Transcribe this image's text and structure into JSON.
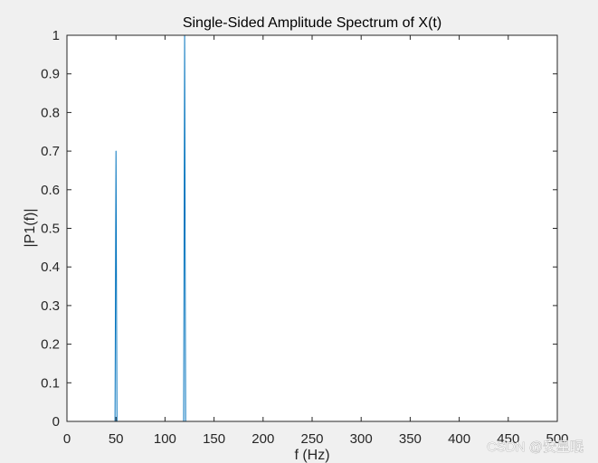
{
  "chart_data": {
    "type": "line",
    "title": "Single-Sided Amplitude Spectrum of X(t)",
    "xlabel": "f (Hz)",
    "ylabel": "|P1(f)|",
    "xlim": [
      0,
      500
    ],
    "ylim": [
      0,
      1
    ],
    "xticks": [
      "0",
      "50",
      "100",
      "150",
      "200",
      "250",
      "300",
      "350",
      "400",
      "450",
      "500"
    ],
    "yticks": [
      "0",
      "0.1",
      "0.2",
      "0.3",
      "0.4",
      "0.5",
      "0.6",
      "0.7",
      "0.8",
      "0.9",
      "1"
    ],
    "grid": false,
    "legend": "none",
    "series": [
      {
        "color": "#0072bd",
        "x": [
          0,
          49,
          50,
          51,
          119,
          120,
          121,
          500
        ],
        "y": [
          0,
          0,
          0.7,
          0,
          0,
          1.0,
          0,
          0
        ]
      }
    ]
  },
  "watermark": "CSDN @安星眠"
}
